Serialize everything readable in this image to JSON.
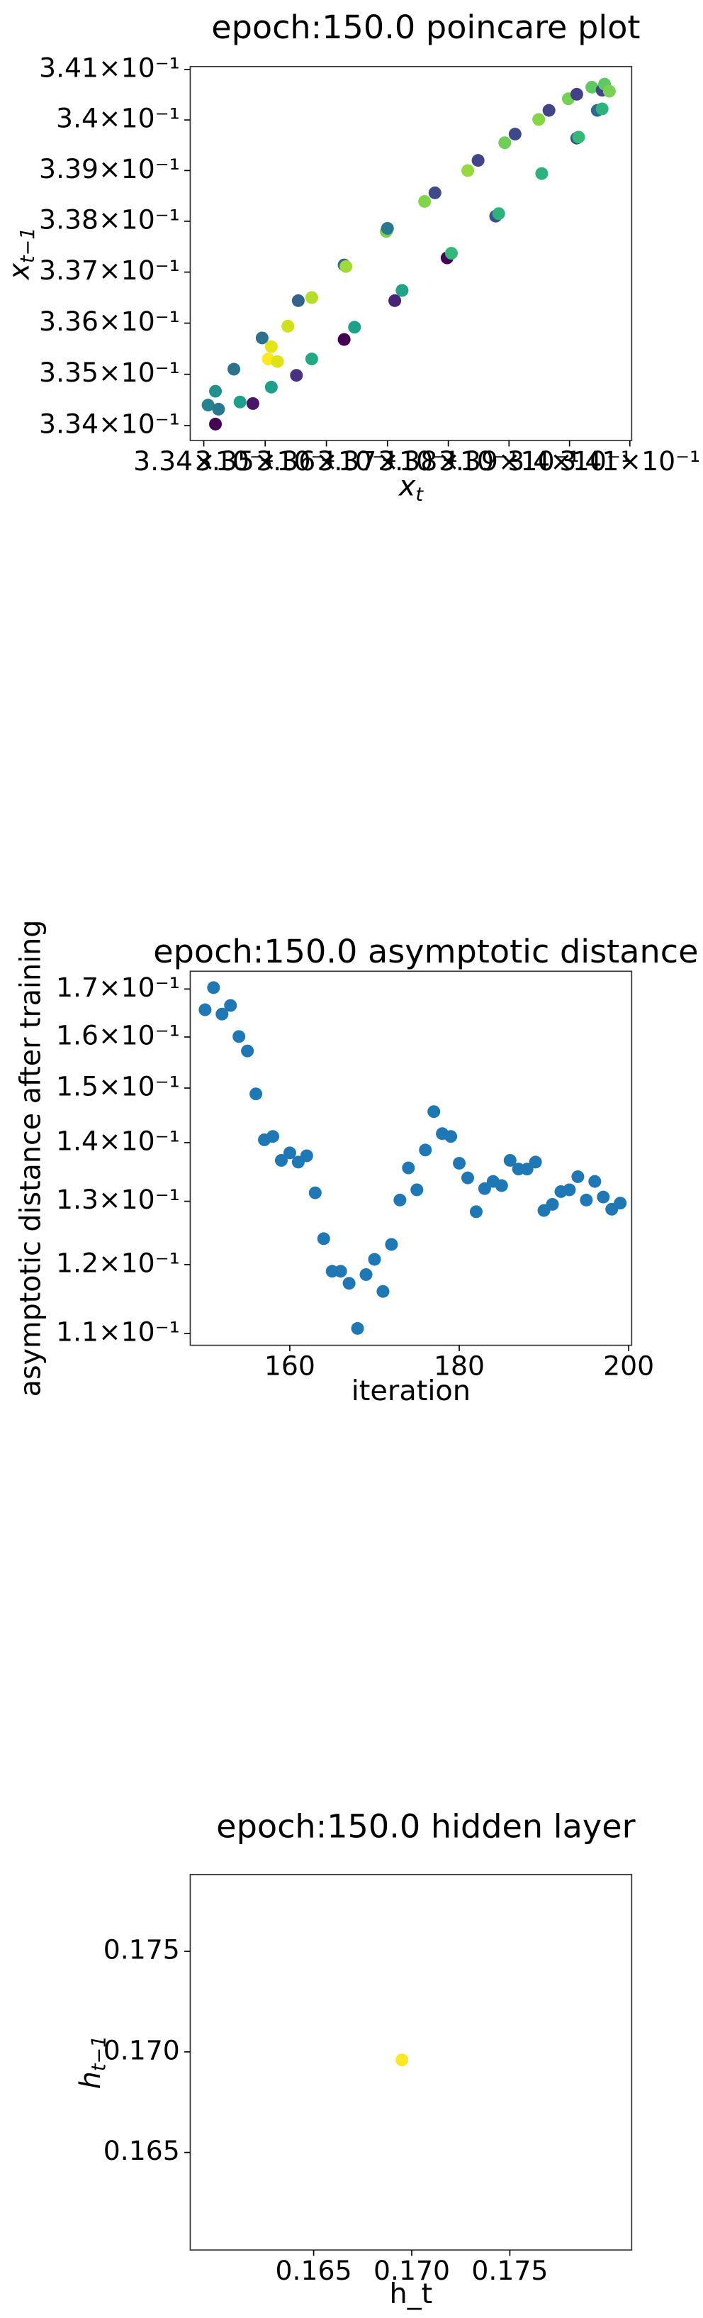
{
  "chart_data": [
    {
      "type": "scatter",
      "title": "epoch:150.0 poincare plot",
      "xlabel": {
        "text": "x",
        "sub": "t"
      },
      "ylabel": {
        "text": "x",
        "sub": "t−1"
      },
      "xscale": "log",
      "yscale": "log",
      "xlim": [
        0.33378,
        0.34103
      ],
      "ylim": [
        0.33371,
        0.34106
      ],
      "xticks": [
        {
          "value": 0.334,
          "label": "3.34×10⁻¹"
        },
        {
          "value": 0.335,
          "label": "3.35×10⁻¹"
        },
        {
          "value": 0.336,
          "label": "3.36×10⁻¹"
        },
        {
          "value": 0.337,
          "label": "3.37×10⁻¹"
        },
        {
          "value": 0.338,
          "label": "3.38×10⁻¹"
        },
        {
          "value": 0.339,
          "label": "3.39×10⁻¹"
        },
        {
          "value": 0.34,
          "label": "3.4×10⁻¹"
        },
        {
          "value": 0.341,
          "label": "3.41×10⁻¹"
        }
      ],
      "yticks": [
        {
          "value": 0.334,
          "label": "3.34×10⁻¹"
        },
        {
          "value": 0.335,
          "label": "3.35×10⁻¹"
        },
        {
          "value": 0.336,
          "label": "3.36×10⁻¹"
        },
        {
          "value": 0.337,
          "label": "3.37×10⁻¹"
        },
        {
          "value": 0.338,
          "label": "3.38×10⁻¹"
        },
        {
          "value": 0.339,
          "label": "3.39×10⁻¹"
        },
        {
          "value": 0.34,
          "label": "3.4×10⁻¹"
        },
        {
          "value": 0.341,
          "label": "3.41×10⁻¹"
        }
      ],
      "x": [
        0.33419,
        0.33407,
        0.33424,
        0.33419,
        0.33449,
        0.33459,
        0.3348,
        0.33495,
        0.3351,
        0.33505,
        0.3352,
        0.3351,
        0.33537,
        0.33554,
        0.33551,
        0.33576,
        0.33576,
        0.33629,
        0.33632,
        0.33629,
        0.33646,
        0.33698,
        0.337,
        0.33712,
        0.33724,
        0.33761,
        0.33778,
        0.33798,
        0.33805,
        0.33832,
        0.33849,
        0.33878,
        0.33883,
        0.33893,
        0.3391,
        0.33949,
        0.33954,
        0.33966,
        0.33998,
        0.34012,
        0.34012,
        0.34015,
        0.34037,
        0.34046,
        0.34054,
        0.34058,
        0.34066,
        0.34054
      ],
      "values": [
        0.33403,
        0.3344,
        0.33432,
        0.33467,
        0.3351,
        0.33446,
        0.33443,
        0.33571,
        0.33554,
        0.3353,
        0.33525,
        0.33475,
        0.33594,
        0.33644,
        0.33498,
        0.3365,
        0.3353,
        0.33714,
        0.33711,
        0.33568,
        0.33592,
        0.3378,
        0.33786,
        0.33644,
        0.33664,
        0.33839,
        0.33856,
        0.33728,
        0.33737,
        0.339,
        0.3392,
        0.3381,
        0.33815,
        0.33955,
        0.33972,
        0.34001,
        0.33894,
        0.34019,
        0.34042,
        0.34051,
        0.33964,
        0.33966,
        0.34065,
        0.34019,
        0.34059,
        0.34071,
        0.34057,
        0.34022
      ],
      "colors": [
        "#440154",
        "#26828e",
        "#2a788e",
        "#21918c",
        "#2c728e",
        "#1f9e89",
        "#481668",
        "#2c728e",
        "#e5e419",
        "#fde725",
        "#dde318",
        "#1f9e89",
        "#d0e11c",
        "#33638d",
        "#46327e",
        "#b5de2b",
        "#22a884",
        "#31688e",
        "#a0da39",
        "#440154",
        "#1fa088",
        "#7ad151",
        "#2a788e",
        "#482475",
        "#20a386",
        "#84d44b",
        "#3e4a89",
        "#440154",
        "#35b779",
        "#95d840",
        "#414487",
        "#3b528b",
        "#2db27d",
        "#6ece58",
        "#3e4989",
        "#86d549",
        "#2db27d",
        "#414487",
        "#75d054",
        "#424086",
        "#3b528b",
        "#35b779",
        "#5ec962",
        "#31688e",
        "#404688",
        "#5ec962",
        "#7ad151",
        "#2db27d"
      ]
    },
    {
      "type": "scatter",
      "title": "epoch:150.0 asymptotic distance",
      "xlabel": "iteration",
      "ylabel": "asymptotic distance after training",
      "xscale": "linear",
      "yscale": "log",
      "xlim": [
        148.25,
        200.35
      ],
      "ylim": [
        0.10837,
        0.17386
      ],
      "xticks": [
        160,
        180,
        200
      ],
      "yticks": [
        {
          "value": 0.11,
          "label": "1.1×10⁻¹"
        },
        {
          "value": 0.12,
          "label": "1.2×10⁻¹"
        },
        {
          "value": 0.13,
          "label": "1.3×10⁻¹"
        },
        {
          "value": 0.14,
          "label": "1.4×10⁻¹"
        },
        {
          "value": 0.15,
          "label": "1.5×10⁻¹"
        },
        {
          "value": 0.16,
          "label": "1.6×10⁻¹"
        },
        {
          "value": 0.17,
          "label": "1.7×10⁻¹"
        }
      ],
      "color": "#1f77b4",
      "x": [
        150,
        151,
        152,
        153,
        154,
        155,
        156,
        157,
        158,
        159,
        160,
        161,
        162,
        163,
        164,
        165,
        166,
        167,
        168,
        169,
        170,
        171,
        172,
        173,
        174,
        175,
        176,
        177,
        178,
        179,
        180,
        181,
        182,
        183,
        184,
        185,
        186,
        187,
        188,
        189,
        190,
        191,
        192,
        193,
        194,
        195,
        196,
        197,
        198,
        199
      ],
      "values": [
        0.1656,
        0.1703,
        0.1647,
        0.1665,
        0.1601,
        0.1572,
        0.1489,
        0.1405,
        0.1411,
        0.1369,
        0.1382,
        0.1366,
        0.1377,
        0.1314,
        0.124,
        0.119,
        0.119,
        0.1172,
        0.1107,
        0.1185,
        0.1208,
        0.116,
        0.1231,
        0.1302,
        0.1356,
        0.1319,
        0.1387,
        0.1456,
        0.1416,
        0.1411,
        0.1364,
        0.1339,
        0.1283,
        0.1321,
        0.1333,
        0.1326,
        0.1369,
        0.1354,
        0.1354,
        0.1366,
        0.1285,
        0.1295,
        0.1316,
        0.1319,
        0.1341,
        0.1302,
        0.1333,
        0.1307,
        0.1287,
        0.1297
      ]
    },
    {
      "type": "scatter",
      "title": "epoch:150.0 hidden layer",
      "xlabel": "h_t",
      "ylabel": {
        "text": "h",
        "sub": "t−1"
      },
      "xscale": "linear",
      "yscale": "linear",
      "xlim": [
        0.15871,
        0.18121
      ],
      "ylim": [
        0.16015,
        0.17882
      ],
      "xticks": [
        0.165,
        {
          "value": 0.17,
          "label": "0.170"
        },
        0.175
      ],
      "yticks": [
        0.165,
        {
          "value": 0.17,
          "label": "0.170"
        },
        0.175
      ],
      "x": [
        0.1695
      ],
      "values": [
        0.1696
      ],
      "colors": [
        "#fde725"
      ]
    }
  ]
}
